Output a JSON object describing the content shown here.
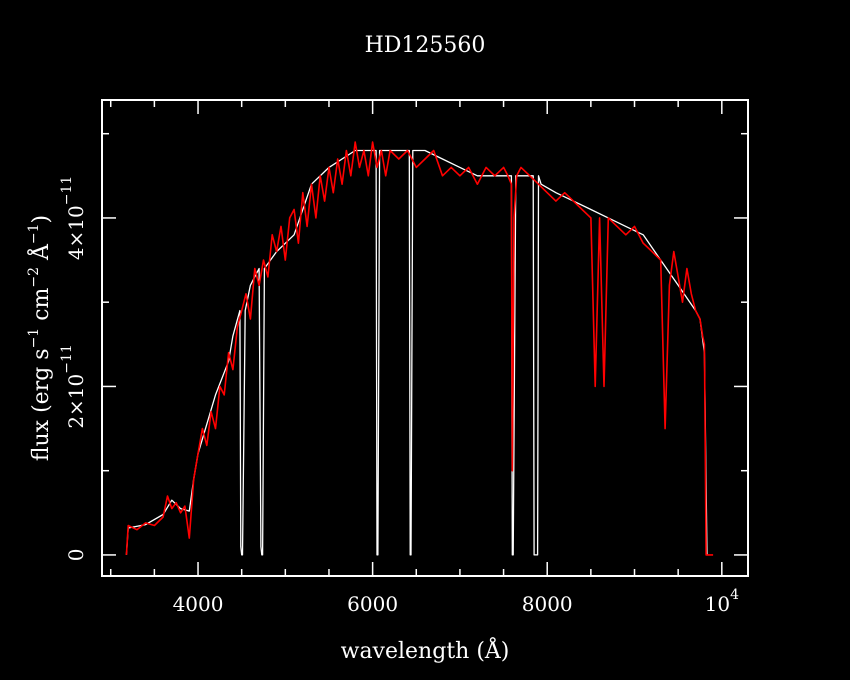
{
  "chart_data": {
    "type": "line",
    "title": "HD125560",
    "xlabel": "wavelength (Å)",
    "ylabel": {
      "prefix": "flux (erg s",
      "sup1": "−1",
      "mid1": " cm",
      "sup2": "−2",
      "mid2": " Å",
      "sup3": "−1",
      "suffix": ")"
    },
    "xlim": [
      2900,
      10300
    ],
    "ylim": [
      -2.5e-12,
      5.4e-11
    ],
    "x_ticks": [
      {
        "value": 4000,
        "label": "4000"
      },
      {
        "value": 6000,
        "label": "6000"
      },
      {
        "value": 8000,
        "label": "8000"
      },
      {
        "value": 10000,
        "label": "10",
        "exp": "4"
      }
    ],
    "y_ticks": [
      {
        "value": 0,
        "label": "0"
      },
      {
        "value": 2e-11,
        "label": "2×10",
        "exp": "−11"
      },
      {
        "value": 4e-11,
        "label": "4×10",
        "exp": "−11"
      }
    ],
    "series": [
      {
        "color": "#ffffff",
        "x": [
          3180,
          3200,
          3400,
          3600,
          3700,
          3800,
          3900,
          3950,
          4000,
          4200,
          4350,
          4400,
          4480,
          4490,
          4500,
          4510,
          4540,
          4600,
          4700,
          4720,
          4730,
          4740,
          4760,
          4900,
          5100,
          5300,
          5500,
          5800,
          5900,
          6000,
          6040,
          6050,
          6060,
          6080,
          6200,
          6400,
          6420,
          6430,
          6440,
          6460,
          6600,
          6800,
          7000,
          7200,
          7400,
          7500,
          7590,
          7600,
          7610,
          7640,
          7800,
          7840,
          7850,
          7860,
          7880,
          7890,
          7900,
          7930,
          8100,
          8300,
          8500,
          8700,
          8900,
          9100,
          9300,
          9500,
          9700,
          9750,
          9800,
          9830
        ],
        "y": [
          0,
          3.2e-12,
          3.6e-12,
          4.8e-12,
          6.5e-12,
          5.5e-12,
          5.2e-12,
          9e-12,
          1.2e-11,
          1.9e-11,
          2.3e-11,
          2.6e-11,
          2.9e-11,
          1e-12,
          0,
          0,
          2.9e-11,
          3.2e-11,
          3.4e-11,
          1e-12,
          0,
          0,
          3.4e-11,
          3.6e-11,
          3.8e-11,
          4.4e-11,
          4.6e-11,
          4.8e-11,
          4.8e-11,
          4.8e-11,
          4.8e-11,
          0,
          0,
          4.8e-11,
          4.8e-11,
          4.8e-11,
          4.8e-11,
          0,
          0,
          4.8e-11,
          4.8e-11,
          4.7e-11,
          4.6e-11,
          4.5e-11,
          4.5e-11,
          4.5e-11,
          4.5e-11,
          0,
          0,
          4.5e-11,
          4.5e-11,
          4.5e-11,
          0,
          0,
          0,
          0,
          4.5e-11,
          4.4e-11,
          4.3e-11,
          4.2e-11,
          4.1e-11,
          4e-11,
          3.9e-11,
          3.8e-11,
          3.5e-11,
          3.2e-11,
          2.9e-11,
          2.8e-11,
          2.4e-11,
          0
        ]
      },
      {
        "color": "#ff0000",
        "x": [
          3180,
          3200,
          3300,
          3400,
          3500,
          3600,
          3650,
          3700,
          3750,
          3800,
          3850,
          3900,
          3950,
          4000,
          4050,
          4100,
          4150,
          4200,
          4250,
          4300,
          4350,
          4400,
          4450,
          4500,
          4550,
          4600,
          4650,
          4700,
          4750,
          4800,
          4850,
          4900,
          4950,
          5000,
          5050,
          5100,
          5150,
          5200,
          5250,
          5300,
          5350,
          5400,
          5450,
          5500,
          5550,
          5600,
          5650,
          5700,
          5750,
          5800,
          5850,
          5900,
          5950,
          6000,
          6050,
          6100,
          6150,
          6200,
          6300,
          6400,
          6500,
          6600,
          6700,
          6800,
          6900,
          7000,
          7100,
          7200,
          7300,
          7400,
          7500,
          7550,
          7590,
          7600,
          7620,
          7650,
          7700,
          7800,
          7900,
          8000,
          8100,
          8200,
          8300,
          8400,
          8500,
          8550,
          8600,
          8650,
          8700,
          8800,
          8900,
          9000,
          9100,
          9200,
          9300,
          9350,
          9400,
          9450,
          9500,
          9550,
          9600,
          9650,
          9700,
          9750,
          9780,
          9800,
          9820,
          9850,
          9900
        ],
        "y": [
          0,
          3.5e-12,
          3e-12,
          3.8e-12,
          3.5e-12,
          4.5e-12,
          7e-12,
          5.5e-12,
          6.2e-12,
          5e-12,
          5.8e-12,
          2e-12,
          9e-12,
          1.2e-11,
          1.5e-11,
          1.3e-11,
          1.7e-11,
          1.5e-11,
          2e-11,
          1.9e-11,
          2.4e-11,
          2.2e-11,
          2.7e-11,
          2.9e-11,
          3.1e-11,
          2.8e-11,
          3.4e-11,
          3.2e-11,
          3.5e-11,
          3.3e-11,
          3.8e-11,
          3.6e-11,
          3.9e-11,
          3.5e-11,
          4e-11,
          4.1e-11,
          3.7e-11,
          4.3e-11,
          3.9e-11,
          4.4e-11,
          4e-11,
          4.5e-11,
          4.2e-11,
          4.6e-11,
          4.3e-11,
          4.7e-11,
          4.4e-11,
          4.8e-11,
          4.5e-11,
          4.9e-11,
          4.6e-11,
          4.8e-11,
          4.5e-11,
          4.9e-11,
          4.6e-11,
          4.8e-11,
          4.5e-11,
          4.8e-11,
          4.7e-11,
          4.8e-11,
          4.6e-11,
          4.7e-11,
          4.8e-11,
          4.5e-11,
          4.6e-11,
          4.5e-11,
          4.6e-11,
          4.4e-11,
          4.6e-11,
          4.5e-11,
          4.6e-11,
          4.5e-11,
          4.4e-11,
          1e-11,
          4e-11,
          4.5e-11,
          4.6e-11,
          4.5e-11,
          4.4e-11,
          4.3e-11,
          4.2e-11,
          4.3e-11,
          4.2e-11,
          4.1e-11,
          4e-11,
          2e-11,
          4e-11,
          2e-11,
          4e-11,
          3.9e-11,
          3.8e-11,
          3.9e-11,
          3.7e-11,
          3.6e-11,
          3.5e-11,
          1.5e-11,
          3.2e-11,
          3.6e-11,
          3.3e-11,
          3e-11,
          3.4e-11,
          3.1e-11,
          2.9e-11,
          2.8e-11,
          2.6e-11,
          2.5e-11,
          0,
          0,
          0
        ]
      }
    ],
    "grid": false
  }
}
